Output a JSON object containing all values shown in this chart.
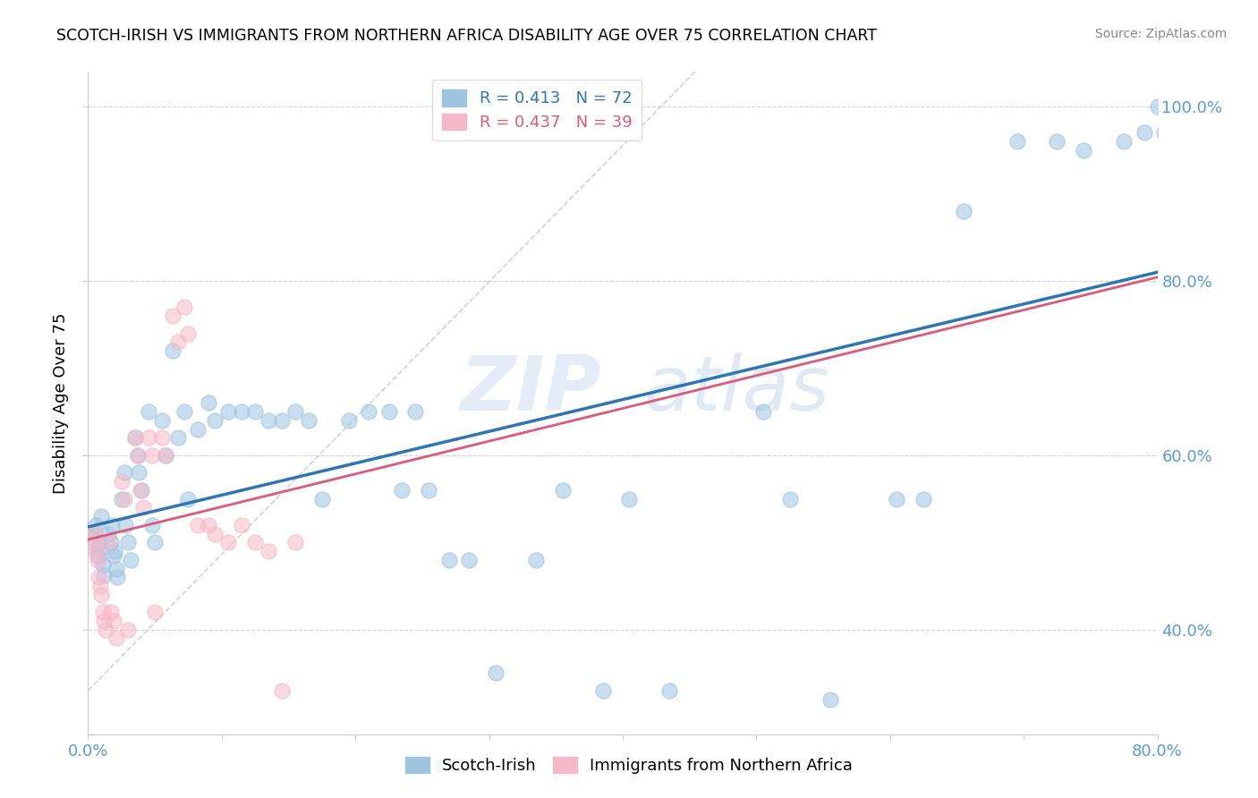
{
  "title": "SCOTCH-IRISH VS IMMIGRANTS FROM NORTHERN AFRICA DISABILITY AGE OVER 75 CORRELATION CHART",
  "source": "Source: ZipAtlas.com",
  "ylabel": "Disability Age Over 75",
  "xlim": [
    0.0,
    0.8
  ],
  "ylim": [
    0.28,
    1.04
  ],
  "xticks": [
    0.0,
    0.1,
    0.2,
    0.3,
    0.4,
    0.5,
    0.6,
    0.7,
    0.8
  ],
  "xticklabels": [
    "0.0%",
    "",
    "",
    "",
    "",
    "",
    "",
    "",
    "80.0%"
  ],
  "yticks": [
    0.4,
    0.6,
    0.8,
    1.0
  ],
  "yticklabels": [
    "40.0%",
    "60.0%",
    "80.0%",
    "100.0%"
  ],
  "tick_color": "#5b9bd5",
  "grid_color": "#c8c8c8",
  "watermark_zip": "ZIP",
  "watermark_atlas": "atlas",
  "legend1_label": "Scotch-Irish",
  "legend2_label": "Immigrants from Northern Africa",
  "R1": 0.413,
  "N1": 72,
  "R2": 0.437,
  "N2": 39,
  "scatter_blue_color": "#9ec4e0",
  "scatter_pink_color": "#f5b8c8",
  "line_blue_color": "#2e75b6",
  "line_pink_color": "#e05878",
  "line_gray_color": "#c0c0c0",
  "blue_x": [
    0.003,
    0.005,
    0.006,
    0.007,
    0.008,
    0.009,
    0.01,
    0.011,
    0.012,
    0.015,
    0.017,
    0.018,
    0.019,
    0.02,
    0.021,
    0.022,
    0.025,
    0.027,
    0.028,
    0.03,
    0.032,
    0.035,
    0.037,
    0.038,
    0.04,
    0.045,
    0.048,
    0.05,
    0.055,
    0.058,
    0.063,
    0.067,
    0.072,
    0.075,
    0.082,
    0.09,
    0.095,
    0.105,
    0.115,
    0.125,
    0.135,
    0.145,
    0.155,
    0.165,
    0.175,
    0.195,
    0.21,
    0.225,
    0.235,
    0.245,
    0.255,
    0.27,
    0.285,
    0.305,
    0.335,
    0.355,
    0.385,
    0.405,
    0.435,
    0.505,
    0.525,
    0.555,
    0.605,
    0.625,
    0.655,
    0.695,
    0.725,
    0.745,
    0.775,
    0.79,
    0.8,
    0.805
  ],
  "blue_y": [
    0.505,
    0.51,
    0.52,
    0.485,
    0.492,
    0.5,
    0.53,
    0.475,
    0.462,
    0.51,
    0.5,
    0.52,
    0.485,
    0.49,
    0.47,
    0.46,
    0.55,
    0.58,
    0.52,
    0.5,
    0.48,
    0.62,
    0.6,
    0.58,
    0.56,
    0.65,
    0.52,
    0.5,
    0.64,
    0.6,
    0.72,
    0.62,
    0.65,
    0.55,
    0.63,
    0.66,
    0.64,
    0.65,
    0.65,
    0.65,
    0.64,
    0.64,
    0.65,
    0.64,
    0.55,
    0.64,
    0.65,
    0.65,
    0.56,
    0.65,
    0.56,
    0.48,
    0.48,
    0.35,
    0.48,
    0.56,
    0.33,
    0.55,
    0.33,
    0.65,
    0.55,
    0.32,
    0.55,
    0.55,
    0.88,
    0.96,
    0.96,
    0.95,
    0.96,
    0.97,
    1.0,
    0.97
  ],
  "pink_x": [
    0.003,
    0.005,
    0.006,
    0.007,
    0.008,
    0.009,
    0.01,
    0.011,
    0.012,
    0.013,
    0.015,
    0.017,
    0.019,
    0.021,
    0.025,
    0.027,
    0.03,
    0.035,
    0.037,
    0.039,
    0.041,
    0.045,
    0.048,
    0.05,
    0.055,
    0.058,
    0.063,
    0.067,
    0.072,
    0.075,
    0.082,
    0.09,
    0.095,
    0.105,
    0.115,
    0.125,
    0.135,
    0.145,
    0.155
  ],
  "pink_y": [
    0.5,
    0.51,
    0.49,
    0.48,
    0.46,
    0.45,
    0.44,
    0.42,
    0.41,
    0.4,
    0.5,
    0.42,
    0.41,
    0.39,
    0.57,
    0.55,
    0.4,
    0.62,
    0.6,
    0.56,
    0.54,
    0.62,
    0.6,
    0.42,
    0.62,
    0.6,
    0.76,
    0.73,
    0.77,
    0.74,
    0.52,
    0.52,
    0.51,
    0.5,
    0.52,
    0.5,
    0.49,
    0.33,
    0.5
  ]
}
